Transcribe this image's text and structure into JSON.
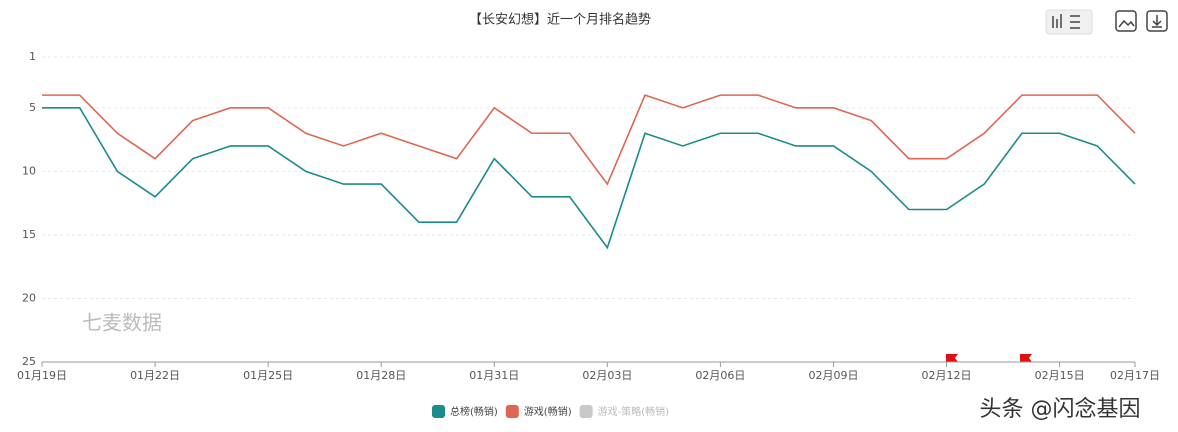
{
  "chart_data": {
    "type": "line",
    "title": "【长安幻想】近一个月排名趋势",
    "watermark": "七麦数据",
    "credit": "头条 @闪念基因",
    "categories": [
      "01月19日",
      null,
      null,
      "01月22日",
      null,
      null,
      "01月25日",
      null,
      null,
      "01月28日",
      null,
      null,
      "01月31日",
      null,
      null,
      "02月03日",
      null,
      null,
      "02月06日",
      null,
      null,
      "02月09日",
      null,
      null,
      "02月12日",
      null,
      null,
      "02月15日",
      null,
      "02月17日"
    ],
    "series": [
      {
        "name": "总榜(畅销)",
        "color": "#1a8c8a",
        "values": [
          5,
          5,
          10,
          12,
          9,
          8,
          8,
          10,
          11,
          11,
          14,
          14,
          9,
          12,
          12,
          16,
          7,
          8,
          7,
          7,
          8,
          8,
          10,
          13,
          13,
          11,
          7,
          7,
          8,
          11
        ]
      },
      {
        "name": "游戏(畅销)",
        "color": "#e06552",
        "values": [
          4,
          4,
          7,
          9,
          6,
          5,
          5,
          7,
          8,
          7,
          8,
          9,
          5,
          7,
          7,
          11,
          4,
          5,
          4,
          4,
          5,
          5,
          6,
          9,
          9,
          7,
          4,
          4,
          4,
          7
        ]
      }
    ],
    "legend_inactive": [
      {
        "name": "游戏-策略(畅销)",
        "color": "#c8c8c8"
      }
    ],
    "ylim": [
      1,
      25
    ],
    "yticks": [
      1,
      5,
      10,
      15,
      20,
      25
    ],
    "y_reversed": true,
    "grid": true
  }
}
